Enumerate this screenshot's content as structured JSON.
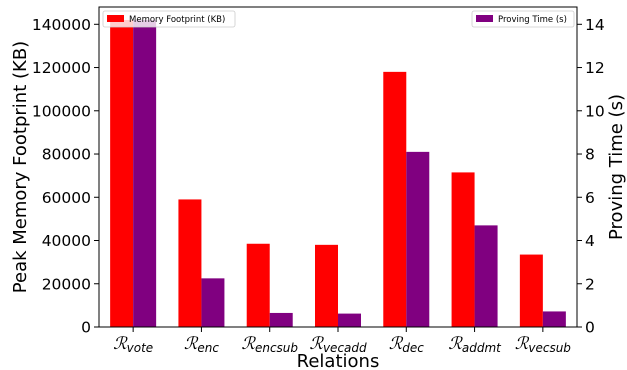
{
  "chart_data": {
    "type": "bar",
    "categories": [
      {
        "main": "ℛ",
        "sub": "vote"
      },
      {
        "main": "ℛ",
        "sub": "enc"
      },
      {
        "main": "ℛ",
        "sub": "encsub"
      },
      {
        "main": "ℛ",
        "sub": "vecadd"
      },
      {
        "main": "ℛ",
        "sub": "dec"
      },
      {
        "main": "ℛ",
        "sub": "addmt"
      },
      {
        "main": "ℛ",
        "sub": "vecsub"
      }
    ],
    "series": [
      {
        "name": "Memory Footprint (KB)",
        "axis": "left",
        "color": "#ff0000",
        "values": [
          142000,
          59000,
          38500,
          38000,
          118000,
          71500,
          33500
        ]
      },
      {
        "name": "Proving Time (s)",
        "axis": "right",
        "color": "#800080",
        "values": [
          14.2,
          2.25,
          0.65,
          0.62,
          8.1,
          4.7,
          0.72
        ]
      }
    ],
    "xlabel": "Relations",
    "ylabel_left": "Peak Memory Footprint (KB)",
    "ylabel_right": "Proving Time (s)",
    "ylim_left": [
      0,
      148000
    ],
    "ylim_right": [
      0,
      14.8
    ],
    "yticks_left": [
      "0",
      "20000",
      "40000",
      "60000",
      "80000",
      "100000",
      "120000",
      "140000"
    ],
    "yticks_right": [
      "0",
      "2",
      "4",
      "6",
      "8",
      "10",
      "12",
      "14"
    ],
    "legend": {
      "left_series_placement": "top-left",
      "right_series_placement": "top-right"
    },
    "grid": false
  }
}
